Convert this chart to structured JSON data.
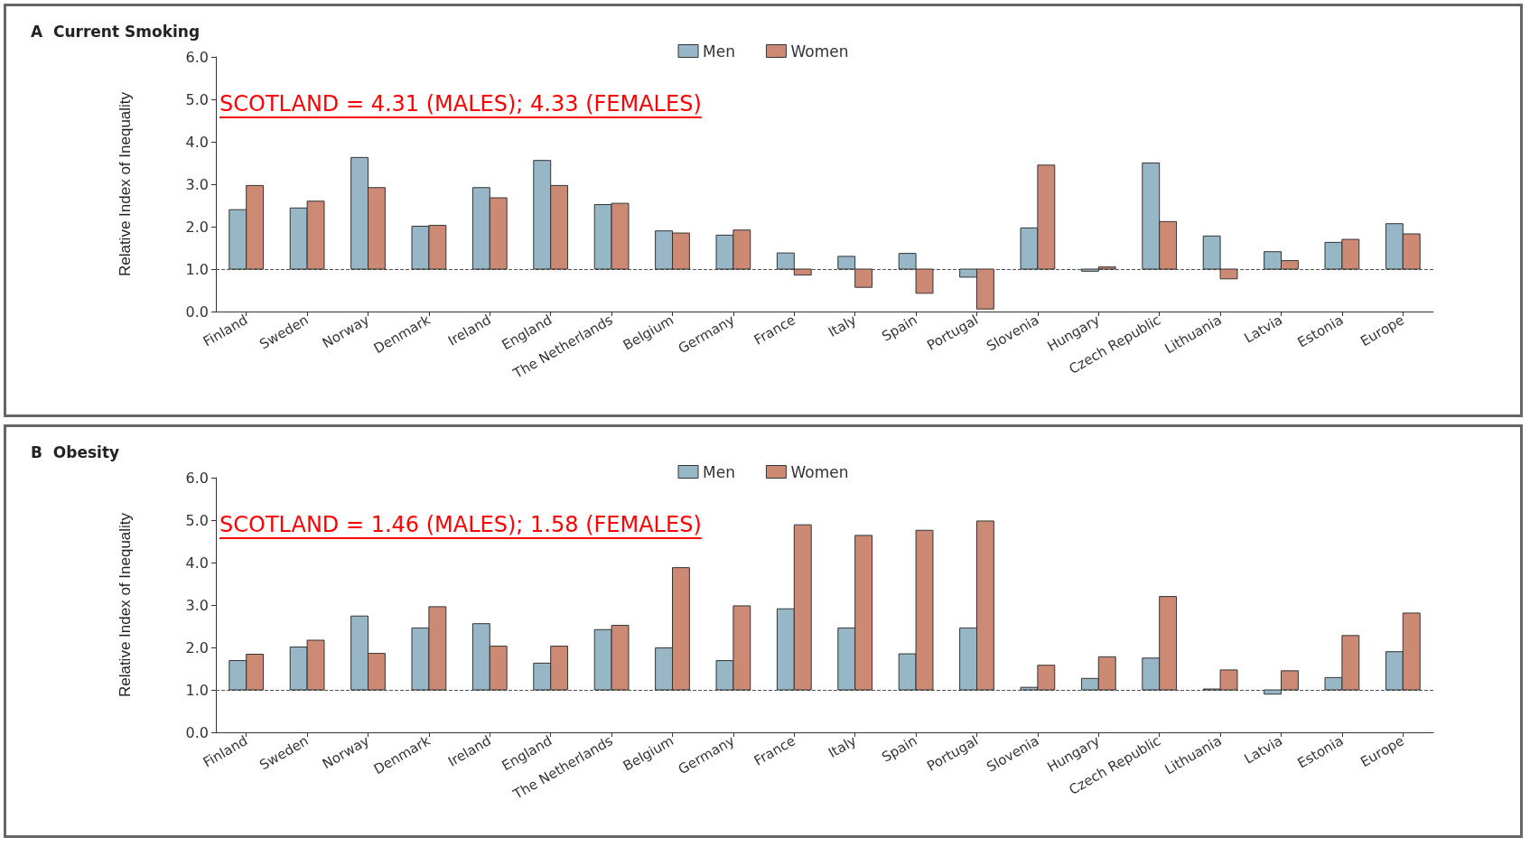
{
  "chart_data": [
    {
      "type": "bar",
      "title": "A  Current Smoking",
      "ylabel": "Relative Index of Inequality",
      "categories": [
        "Finland",
        "Sweden",
        "Norway",
        "Denmark",
        "Ireland",
        "England",
        "The Netherlands",
        "Belgium",
        "Germany",
        "France",
        "Italy",
        "Spain",
        "Portugal",
        "Slovenia",
        "Hungary",
        "Czech Republic",
        "Lithuania",
        "Latvia",
        "Estonia",
        "Europe"
      ],
      "series": [
        {
          "name": "Men",
          "color": "#97b6c6",
          "base": [
            1,
            1,
            1,
            1,
            1,
            1,
            1,
            1,
            1,
            1,
            1,
            1,
            1,
            1,
            1,
            1,
            1,
            1,
            1,
            1
          ],
          "values": [
            1.4,
            1.44,
            2.63,
            1.01,
            1.92,
            2.56,
            1.52,
            0.9,
            0.8,
            0.38,
            0.3,
            0.37,
            -0.19,
            0.97,
            -0.05,
            2.5,
            0.78,
            0.41,
            0.63,
            1.07
          ]
        },
        {
          "name": "Women",
          "color": "#cc8a75",
          "base": [
            1,
            1,
            1,
            1,
            1,
            1,
            1,
            1,
            1,
            1,
            1,
            1,
            1,
            1,
            1,
            1,
            1,
            1,
            1,
            1
          ],
          "values": [
            1.97,
            1.6,
            1.92,
            1.03,
            1.68,
            1.97,
            1.55,
            0.85,
            0.92,
            -0.14,
            -0.43,
            -0.57,
            -0.94,
            2.45,
            0.05,
            1.12,
            -0.23,
            0.2,
            0.7,
            0.83
          ]
        }
      ],
      "ylim": [
        0,
        6
      ],
      "yticks": [
        {
          "value": 0,
          "label": "0.0"
        },
        {
          "value": 1,
          "label": "1.0"
        },
        {
          "value": 2,
          "label": "2.0"
        },
        {
          "value": 3,
          "label": "3.0"
        },
        {
          "value": 4,
          "label": "4.0"
        },
        {
          "value": 5,
          "label": "5.0"
        },
        {
          "value": 6,
          "label": "6.0"
        }
      ],
      "ref_lines": [
        {
          "axis": "y",
          "value": 1,
          "line_style": "dashed",
          "color": "#555555"
        }
      ],
      "legend": "top",
      "grid": false,
      "annotations": [
        "SCOTLAND = 4.31 (MALES); 4.33 (FEMALES)"
      ]
    },
    {
      "type": "bar",
      "title": "B  Obesity",
      "ylabel": "Relative Index of Inequality",
      "categories": [
        "Finland",
        "Sweden",
        "Norway",
        "Denmark",
        "Ireland",
        "England",
        "The Netherlands",
        "Belgium",
        "Germany",
        "France",
        "Italy",
        "Spain",
        "Portugal",
        "Slovenia",
        "Hungary",
        "Czech Republic",
        "Lithuania",
        "Latvia",
        "Estonia",
        "Europe"
      ],
      "series": [
        {
          "name": "Men",
          "color": "#97b6c6",
          "base": [
            1,
            1,
            1,
            1,
            1,
            1,
            1,
            1,
            1,
            1,
            1,
            1,
            1,
            1,
            1,
            1,
            1,
            1,
            1,
            1
          ],
          "values": [
            0.69,
            1.01,
            1.74,
            1.46,
            1.56,
            0.63,
            1.42,
            0.99,
            0.69,
            1.91,
            1.46,
            0.85,
            1.46,
            0.06,
            0.27,
            0.75,
            0.02,
            -0.1,
            0.29,
            0.9
          ]
        },
        {
          "name": "Women",
          "color": "#cc8a75",
          "base": [
            1,
            1,
            1,
            1,
            1,
            1,
            1,
            1,
            1,
            1,
            1,
            1,
            1,
            1,
            1,
            1,
            1,
            1,
            1,
            1
          ],
          "values": [
            0.84,
            1.17,
            0.86,
            1.96,
            1.03,
            1.03,
            1.52,
            2.88,
            1.98,
            3.89,
            3.64,
            3.76,
            3.98,
            0.58,
            0.78,
            2.2,
            0.47,
            0.45,
            1.28,
            1.81
          ]
        }
      ],
      "ylim": [
        0,
        6
      ],
      "yticks": [
        {
          "value": 0,
          "label": "0.0"
        },
        {
          "value": 1,
          "label": "1.0"
        },
        {
          "value": 2,
          "label": "2.0"
        },
        {
          "value": 3,
          "label": "3.0"
        },
        {
          "value": 4,
          "label": "4.0"
        },
        {
          "value": 5,
          "label": "5.0"
        },
        {
          "value": 6,
          "label": "6.0"
        }
      ],
      "ref_lines": [
        {
          "axis": "y",
          "value": 1,
          "line_style": "dashed",
          "color": "#555555"
        }
      ],
      "legend": "top",
      "grid": false,
      "annotations": [
        "SCOTLAND = 1.46 (MALES); 1.58 (FEMALES)"
      ]
    }
  ]
}
